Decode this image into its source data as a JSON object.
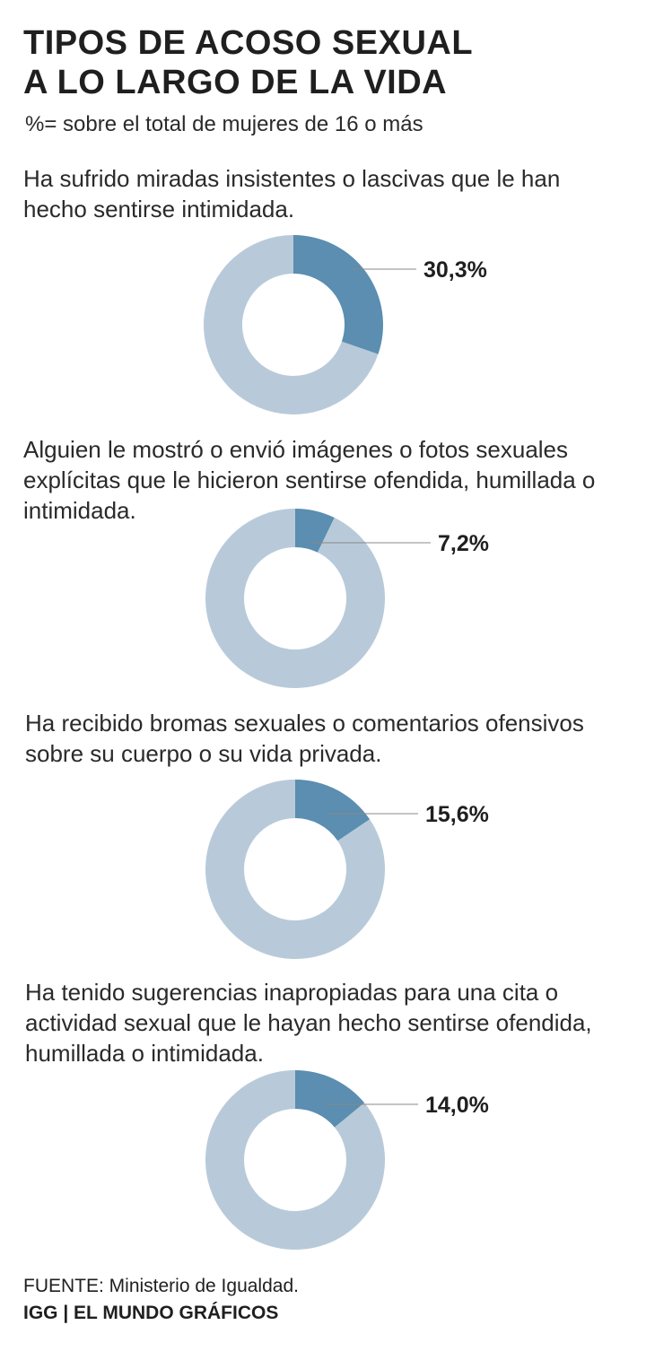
{
  "header": {
    "title_line1": "TIPOS DE ACOSO SEXUAL",
    "title_line2": "A LO LARGO DE LA VIDA",
    "subtitle": "%= sobre el total de mujeres de 16 o más"
  },
  "colors": {
    "value": "#5b8eb0",
    "remainder": "#b8cad9",
    "leader": "#888888"
  },
  "chart_data": [
    {
      "type": "pie",
      "title": "Ha sufrido miradas insistentes o lascivas que le han hecho sentirse intimidada.",
      "value": 30.3,
      "label": "30,3%"
    },
    {
      "type": "pie",
      "title": "Alguien le mostró o envió imágenes o fotos sexuales explícitas que le hicieron sentirse ofendida, humillada o intimidada.",
      "value": 7.2,
      "label": "7,2%"
    },
    {
      "type": "pie",
      "title": "Ha recibido bromas sexuales o comentarios ofensivos sobre su cuerpo o su vida privada.",
      "value": 15.6,
      "label": "15,6%"
    },
    {
      "type": "pie",
      "title": "Ha tenido sugerencias inapropiadas para una cita o actividad sexual que le hayan hecho sentirse ofendida, humillada o intimidada.",
      "value": 14.0,
      "label": "14,0%"
    }
  ],
  "footer": {
    "source": "FUENTE: Ministerio de Igualdad.",
    "credit": "IGG | EL MUNDO GRÁFICOS"
  }
}
